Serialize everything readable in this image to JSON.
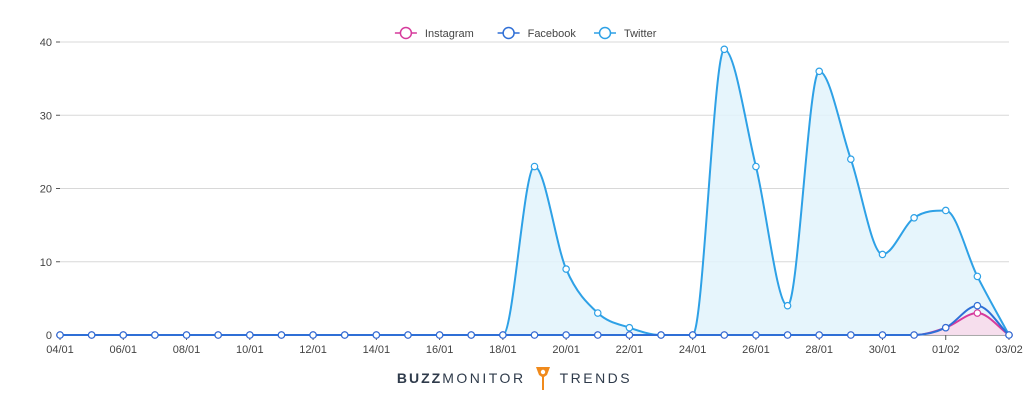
{
  "chart_data": {
    "type": "area",
    "x": [
      "04/01",
      "05/01",
      "06/01",
      "07/01",
      "08/01",
      "09/01",
      "10/01",
      "11/01",
      "12/01",
      "13/01",
      "14/01",
      "15/01",
      "16/01",
      "17/01",
      "18/01",
      "19/01",
      "20/01",
      "21/01",
      "22/01",
      "23/01",
      "24/01",
      "25/01",
      "26/01",
      "27/01",
      "28/01",
      "29/01",
      "30/01",
      "31/01",
      "01/02",
      "02/02",
      "03/02"
    ],
    "x_tick_labels": [
      "04/01",
      "06/01",
      "08/01",
      "10/01",
      "12/01",
      "14/01",
      "16/01",
      "18/01",
      "20/01",
      "22/01",
      "24/01",
      "26/01",
      "28/01",
      "30/01",
      "01/02",
      "03/02"
    ],
    "ylim": [
      0,
      40
    ],
    "y_ticks": [
      0,
      10,
      20,
      30,
      40
    ],
    "grid": true,
    "legend_position": "top-center",
    "series": [
      {
        "name": "Instagram",
        "color": "#d63a9c",
        "fill": "#f8d9ea",
        "values": [
          0,
          0,
          0,
          0,
          0,
          0,
          0,
          0,
          0,
          0,
          0,
          0,
          0,
          0,
          0,
          0,
          0,
          0,
          0,
          0,
          0,
          0,
          0,
          0,
          0,
          0,
          0,
          0,
          1,
          3,
          0
        ]
      },
      {
        "name": "Facebook",
        "color": "#2f6fd6",
        "fill": "none",
        "values": [
          0,
          0,
          0,
          0,
          0,
          0,
          0,
          0,
          0,
          0,
          0,
          0,
          0,
          0,
          0,
          0,
          0,
          0,
          0,
          0,
          0,
          0,
          0,
          0,
          0,
          0,
          0,
          0,
          1,
          4,
          0
        ]
      },
      {
        "name": "Twitter",
        "color": "#2ea1e6",
        "fill": "#e2f3fb",
        "values": [
          0,
          0,
          0,
          0,
          0,
          0,
          0,
          0,
          0,
          0,
          0,
          0,
          0,
          0,
          0,
          23,
          9,
          3,
          1,
          0,
          0,
          39,
          23,
          4,
          36,
          24,
          11,
          16,
          17,
          8,
          0
        ]
      }
    ]
  },
  "branding": {
    "bold": "BUZZ",
    "light": "MONITOR",
    "suffix": "TRENDS",
    "logo_icon": "torch-icon",
    "logo_color": "#f08a1c"
  }
}
